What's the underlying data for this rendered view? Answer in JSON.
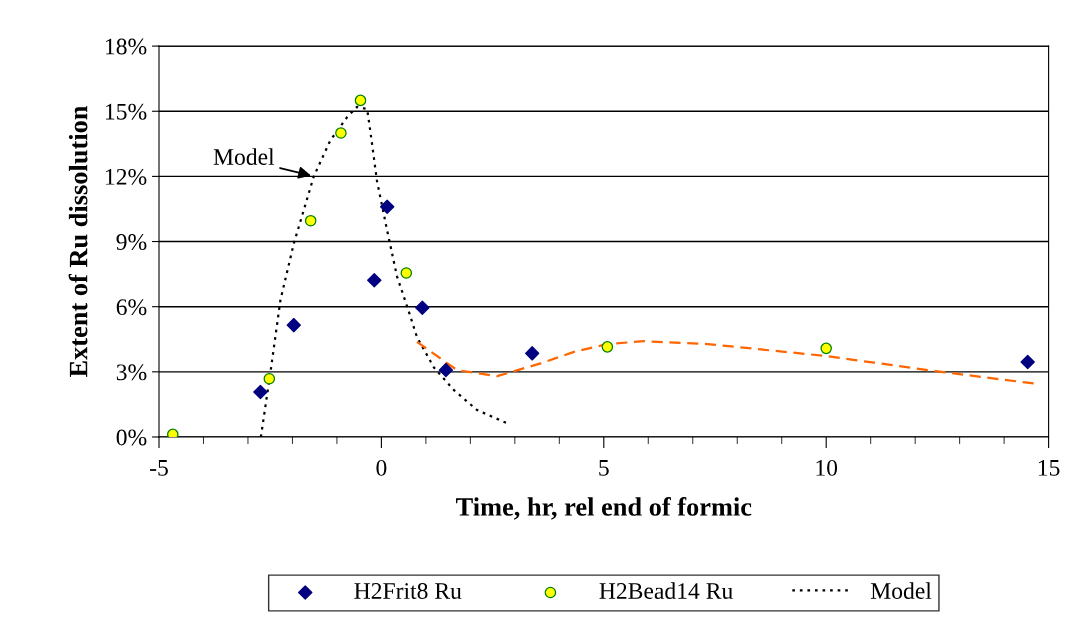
{
  "chart_data": {
    "type": "scatter",
    "xlabel": "Time, hr, rel end of formic",
    "ylabel": "Extent of Ru dissolution",
    "xlim": [
      -5,
      15
    ],
    "xticks": [
      -5,
      0,
      5,
      10,
      15
    ],
    "ylim": [
      0,
      18
    ],
    "yticks": [
      {
        "value": 0,
        "label": "0%"
      },
      {
        "value": 3,
        "label": "3%"
      },
      {
        "value": 6,
        "label": "6%"
      },
      {
        "value": 9,
        "label": "9%"
      },
      {
        "value": 12,
        "label": "12%"
      },
      {
        "value": 15,
        "label": "15%"
      },
      {
        "value": 18,
        "label": "18%"
      }
    ],
    "grid": "y",
    "legend": "bottom",
    "annotations": [
      {
        "text": "Model",
        "x": -1.52,
        "y": 12.0
      }
    ],
    "series": [
      {
        "name": "H2Frit8 Ru",
        "marker": "diamond",
        "color": "#000080",
        "x": [
          -2.72,
          -1.97,
          -0.16,
          0.13,
          0.92,
          1.45,
          3.39,
          14.53
        ],
        "values": [
          2.07,
          5.15,
          7.22,
          10.6,
          5.95,
          3.08,
          3.85,
          3.45
        ]
      },
      {
        "name": "H2Bead14 Ru",
        "marker": "circle",
        "color": "#ffff00",
        "x": [
          -4.69,
          -2.52,
          -1.59,
          -0.91,
          -0.47,
          0.56,
          5.08,
          10.0
        ],
        "values": [
          0.12,
          2.68,
          9.96,
          14.0,
          15.5,
          7.55,
          4.15,
          4.08
        ]
      },
      {
        "name": "Model",
        "type": "line",
        "line_style": "dotted",
        "color": "#000000",
        "x": [
          -2.71,
          -2.5,
          -2.27,
          -1.97,
          -1.52,
          -1.15,
          -0.77,
          -0.55,
          -0.32,
          -0.25,
          -0.1,
          0.13,
          0.35,
          0.58,
          0.8,
          1.18,
          1.63,
          2.15,
          2.83
        ],
        "values": [
          0,
          2.9,
          6.3,
          8.9,
          12.0,
          13.65,
          14.73,
          15.2,
          15.1,
          14.1,
          11.8,
          9.5,
          7.4,
          6.0,
          4.6,
          3.2,
          2.16,
          1.24,
          0.63
        ]
      },
      {
        "type": "line",
        "line_style": "dashed",
        "color": "#ff6600",
        "x": [
          0.8,
          1.7,
          2.6,
          3.58,
          4.33,
          5.08,
          5.9,
          7.33,
          8.83,
          10.03,
          11.08,
          12.58,
          14.68
        ],
        "values": [
          4.38,
          3.08,
          2.8,
          3.39,
          3.92,
          4.28,
          4.41,
          4.28,
          3.97,
          3.72,
          3.42,
          3.0,
          2.46
        ]
      }
    ]
  }
}
